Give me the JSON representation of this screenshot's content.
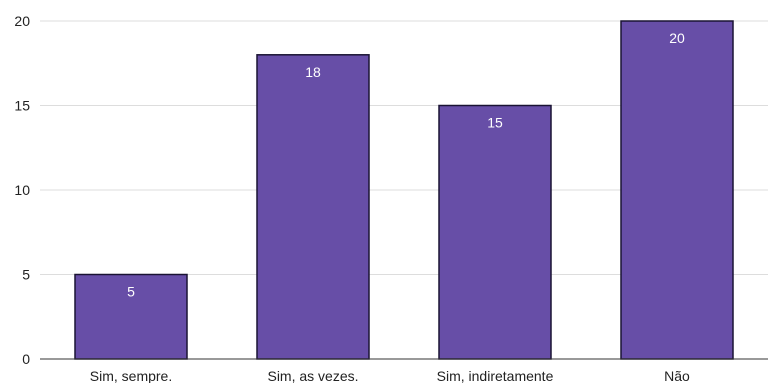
{
  "chart_data": {
    "type": "bar",
    "categories": [
      "Sim, sempre.",
      "Sim, as vezes.",
      "Sim, indiretamente",
      "Não"
    ],
    "values": [
      5,
      18,
      15,
      20
    ],
    "data_labels": [
      "5",
      "18",
      "15",
      "20"
    ],
    "title": "",
    "xlabel": "",
    "ylabel": "",
    "ylim": [
      0,
      20
    ],
    "yticks": [
      0,
      5,
      10,
      15,
      20
    ],
    "ytick_labels": [
      "0",
      "5",
      "10",
      "15",
      "20"
    ],
    "grid": true,
    "legend": "none",
    "colors": {
      "bar_fill": "#674ea7",
      "bar_stroke": "#1a1333",
      "gridline": "#dddddd",
      "baseline": "#333333",
      "data_label": "#ffffff",
      "axis_text": "#222222"
    }
  }
}
